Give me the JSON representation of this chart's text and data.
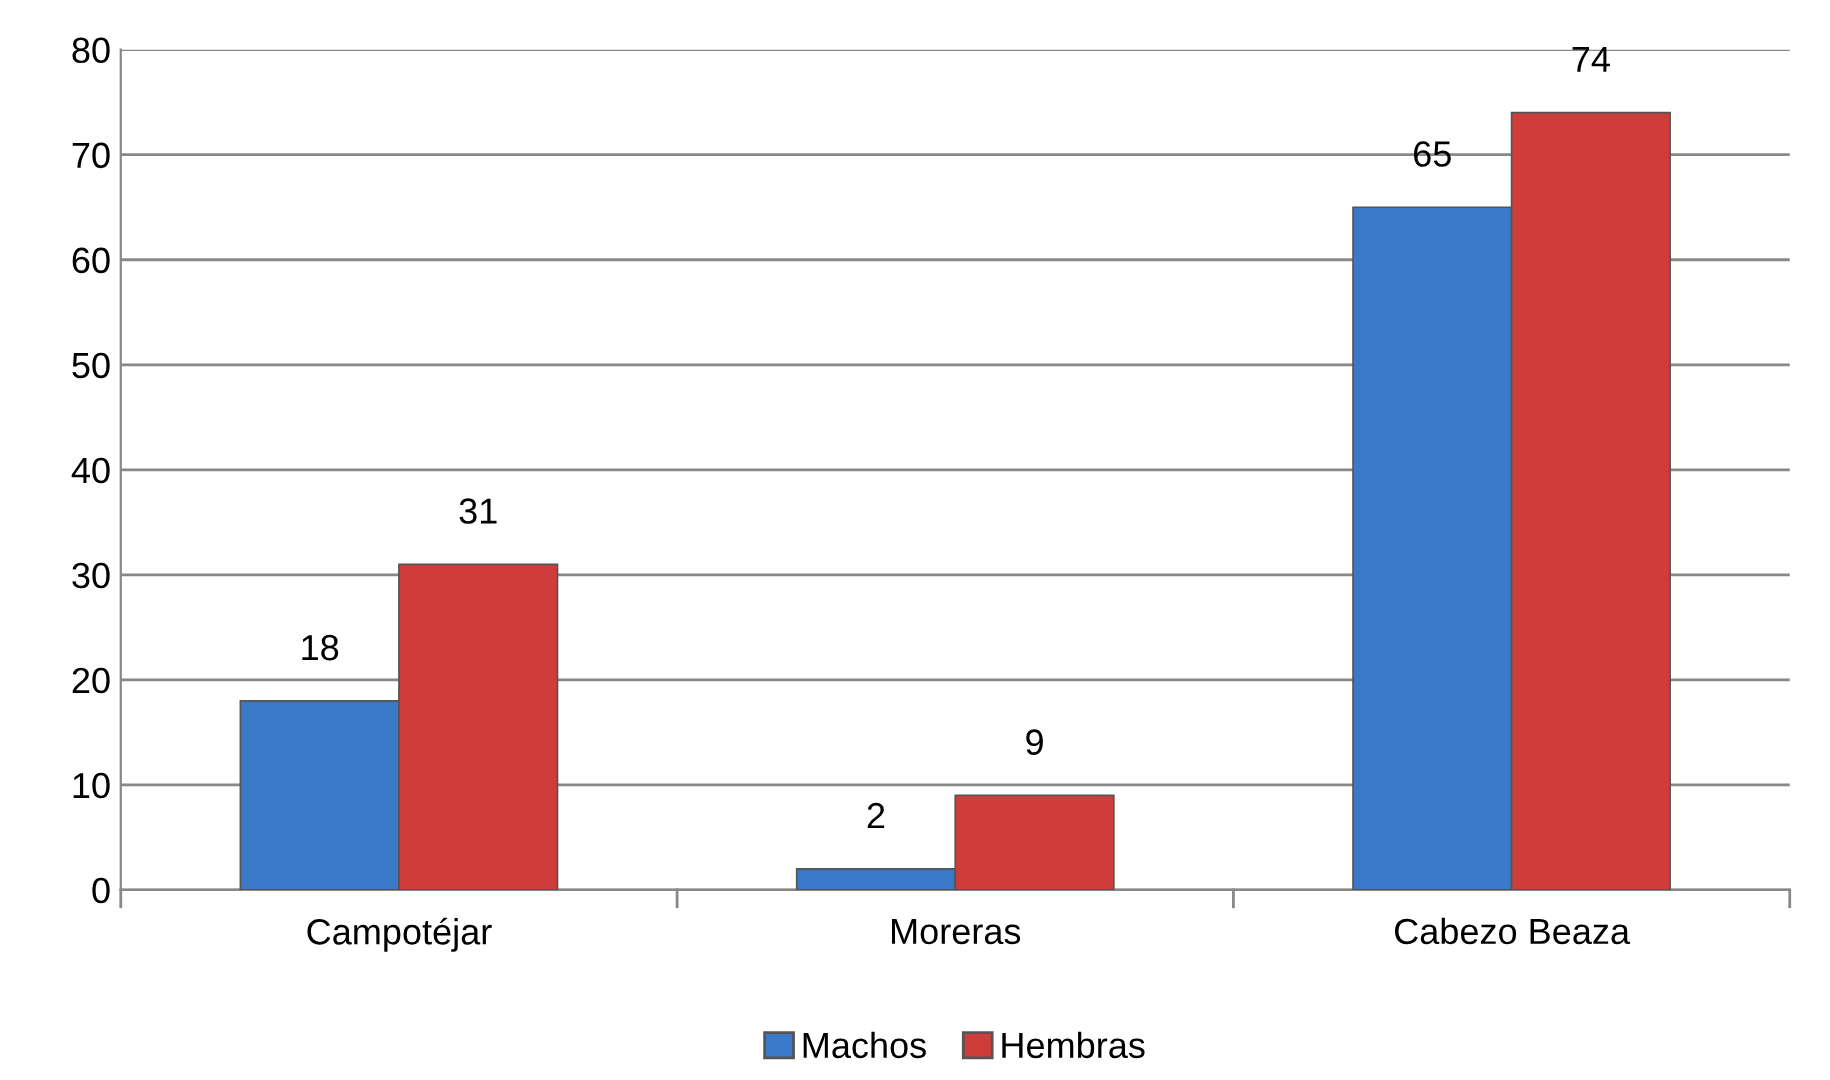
{
  "chart_data": {
    "type": "bar",
    "categories": [
      "Campotéjar",
      "Moreras",
      "Cabezo Beaza"
    ],
    "series": [
      {
        "name": "Machos",
        "color": "#3a78c8",
        "values": [
          18,
          2,
          65
        ]
      },
      {
        "name": "Hembras",
        "color": "#d03c3a",
        "values": [
          31,
          9,
          74
        ]
      }
    ],
    "ylim": [
      0,
      80
    ],
    "yticks": [
      0,
      10,
      20,
      30,
      40,
      50,
      60,
      70,
      80
    ],
    "grid": "y",
    "legend": "bottom",
    "data_labels": true
  }
}
